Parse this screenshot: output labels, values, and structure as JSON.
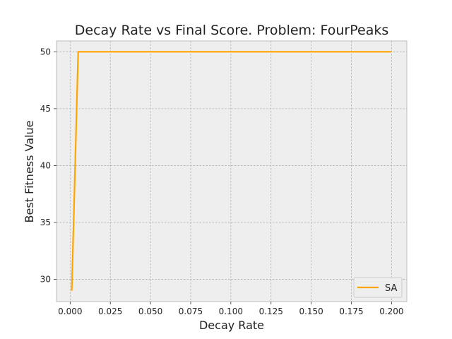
{
  "chart_data": {
    "type": "line",
    "title": "Decay Rate vs Final Score.  Problem: FourPeaks",
    "xlabel": "Decay Rate",
    "ylabel": "Best Fitness Value",
    "xlim": [
      -0.0085,
      0.2095
    ],
    "ylim": [
      28.05,
      50.95
    ],
    "xticks": [
      0.0,
      0.025,
      0.05,
      0.075,
      0.1,
      0.125,
      0.15,
      0.175,
      0.2
    ],
    "xtick_labels": [
      "0.000",
      "0.025",
      "0.050",
      "0.075",
      "0.100",
      "0.125",
      "0.150",
      "0.175",
      "0.200"
    ],
    "yticks": [
      30,
      35,
      40,
      45,
      50
    ],
    "ytick_labels": [
      "30",
      "35",
      "40",
      "45",
      "50"
    ],
    "grid": true,
    "legend_position": "lower-right",
    "series": [
      {
        "name": "SA",
        "color": "#FFA500",
        "x": [
          0.001,
          0.005,
          0.01,
          0.05,
          0.1,
          0.15,
          0.2
        ],
        "y": [
          29,
          50,
          50,
          50,
          50,
          50,
          50
        ]
      }
    ]
  },
  "colors": {
    "plot_background": "#EEEEEE",
    "grid": "#B0B0B0",
    "axes_edge": "#BCBCBC"
  }
}
